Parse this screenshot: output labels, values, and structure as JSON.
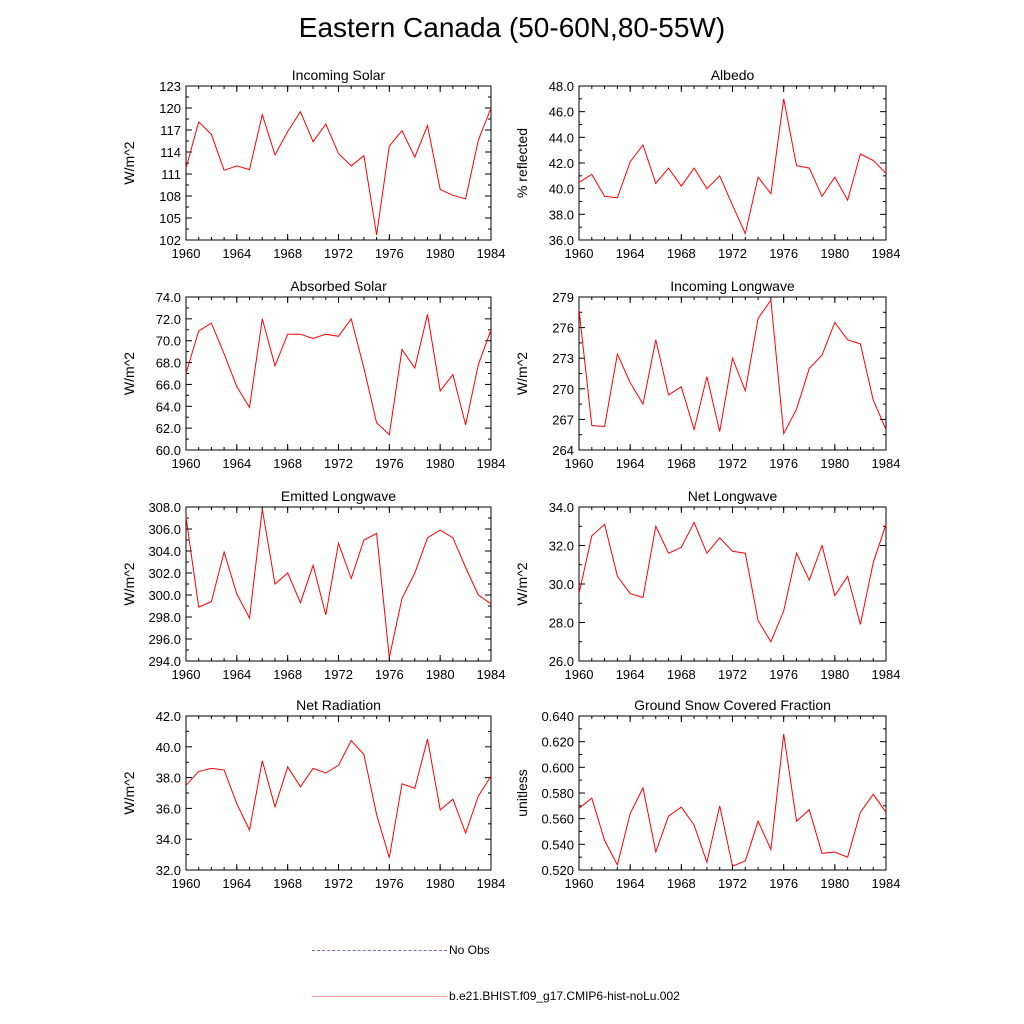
{
  "title": "Eastern Canada (50-60N,80-55W)",
  "legend": {
    "entries": [
      {
        "label": "No Obs",
        "color": "#6f6fb0",
        "dash": true
      },
      {
        "label": "b.e21.BHIST.f09_g17.CMIP6-hist-noLu.002",
        "color": "#ff0000",
        "dash": false
      }
    ]
  },
  "chart_data": [
    {
      "type": "line",
      "title": "Incoming Solar",
      "ylabel": "W/m^2",
      "xlim": [
        1960,
        1984
      ],
      "ylim": [
        102,
        123
      ],
      "xticks": [
        1960,
        1964,
        1968,
        1972,
        1976,
        1980,
        1984
      ],
      "yticks": [
        102,
        105,
        108,
        111,
        114,
        117,
        120,
        123
      ],
      "ytick_labels": [
        "102",
        "105",
        "108",
        "111",
        "114",
        "117",
        "120",
        "123"
      ],
      "x": [
        1960,
        1961,
        1962,
        1963,
        1964,
        1965,
        1966,
        1967,
        1968,
        1969,
        1970,
        1971,
        1972,
        1973,
        1974,
        1975,
        1976,
        1977,
        1978,
        1979,
        1980,
        1981,
        1982,
        1983,
        1984
      ],
      "series": [
        {
          "name": "b.e21.BHIST.f09_g17.CMIP6-hist-noLu.002",
          "color": "#ff0000",
          "values": [
            111.8,
            118.1,
            116.4,
            111.5,
            112.1,
            111.6,
            119.1,
            113.6,
            116.8,
            119.5,
            115.4,
            117.8,
            113.8,
            112.1,
            113.5,
            102.7,
            114.8,
            116.9,
            113.3,
            117.6,
            108.9,
            108.1,
            107.6,
            115.6,
            120.0
          ]
        }
      ]
    },
    {
      "type": "line",
      "title": "Albedo",
      "ylabel": "% reflected",
      "xlim": [
        1960,
        1984
      ],
      "ylim": [
        36,
        48
      ],
      "xticks": [
        1960,
        1964,
        1968,
        1972,
        1976,
        1980,
        1984
      ],
      "yticks": [
        36,
        38,
        40,
        42,
        44,
        46,
        48
      ],
      "ytick_labels": [
        "36.0",
        "38.0",
        "40.0",
        "42.0",
        "44.0",
        "46.0",
        "48.0"
      ],
      "x": [
        1960,
        1961,
        1962,
        1963,
        1964,
        1965,
        1966,
        1967,
        1968,
        1969,
        1970,
        1971,
        1972,
        1973,
        1974,
        1975,
        1976,
        1977,
        1978,
        1979,
        1980,
        1981,
        1982,
        1983,
        1984
      ],
      "series": [
        {
          "name": "b.e21.BHIST.f09_g17.CMIP6-hist-noLu.002",
          "color": "#ff0000",
          "values": [
            40.5,
            41.1,
            39.4,
            39.3,
            42.1,
            43.4,
            40.4,
            41.6,
            40.2,
            41.6,
            40.0,
            41.0,
            38.7,
            36.5,
            40.9,
            39.6,
            47.0,
            41.8,
            41.6,
            39.4,
            40.9,
            39.1,
            42.7,
            42.2,
            41.2
          ]
        }
      ]
    },
    {
      "type": "line",
      "title": "Absorbed Solar",
      "ylabel": "W/m^2",
      "xlim": [
        1960,
        1984
      ],
      "ylim": [
        60,
        74
      ],
      "xticks": [
        1960,
        1964,
        1968,
        1972,
        1976,
        1980,
        1984
      ],
      "yticks": [
        60,
        62,
        64,
        66,
        68,
        70,
        72,
        74
      ],
      "ytick_labels": [
        "60.0",
        "62.0",
        "64.0",
        "66.0",
        "68.0",
        "70.0",
        "72.0",
        "74.0"
      ],
      "x": [
        1960,
        1961,
        1962,
        1963,
        1964,
        1965,
        1966,
        1967,
        1968,
        1969,
        1970,
        1971,
        1972,
        1973,
        1974,
        1975,
        1976,
        1977,
        1978,
        1979,
        1980,
        1981,
        1982,
        1983,
        1984
      ],
      "series": [
        {
          "name": "b.e21.BHIST.f09_g17.CMIP6-hist-noLu.002",
          "color": "#ff0000",
          "values": [
            67.0,
            70.9,
            71.6,
            68.8,
            65.8,
            63.9,
            72.0,
            67.7,
            70.6,
            70.6,
            70.2,
            70.6,
            70.4,
            72.0,
            67.5,
            62.5,
            61.4,
            69.2,
            67.5,
            72.4,
            65.4,
            66.9,
            62.3,
            67.8,
            71.0
          ]
        }
      ]
    },
    {
      "type": "line",
      "title": "Incoming Longwave",
      "ylabel": "W/m^2",
      "xlim": [
        1960,
        1984
      ],
      "ylim": [
        264,
        279
      ],
      "xticks": [
        1960,
        1964,
        1968,
        1972,
        1976,
        1980,
        1984
      ],
      "yticks": [
        264,
        267,
        270,
        273,
        276,
        279
      ],
      "ytick_labels": [
        "264",
        "267",
        "270",
        "273",
        "276",
        "279"
      ],
      "x": [
        1960,
        1961,
        1962,
        1963,
        1964,
        1965,
        1966,
        1967,
        1968,
        1969,
        1970,
        1971,
        1972,
        1973,
        1974,
        1975,
        1976,
        1977,
        1978,
        1979,
        1980,
        1981,
        1982,
        1983,
        1984
      ],
      "series": [
        {
          "name": "b.e21.BHIST.f09_g17.CMIP6-hist-noLu.002",
          "color": "#ff0000",
          "values": [
            277.8,
            266.4,
            266.3,
            273.4,
            270.6,
            268.5,
            274.8,
            269.4,
            270.2,
            266.0,
            271.2,
            265.8,
            273.0,
            269.8,
            276.9,
            278.7,
            265.6,
            268.0,
            272.0,
            273.3,
            276.5,
            274.8,
            274.4,
            268.9,
            266.0
          ]
        }
      ]
    },
    {
      "type": "line",
      "title": "Emitted Longwave",
      "ylabel": "W/m^2",
      "xlim": [
        1960,
        1984
      ],
      "ylim": [
        294,
        308
      ],
      "xticks": [
        1960,
        1964,
        1968,
        1972,
        1976,
        1980,
        1984
      ],
      "yticks": [
        294,
        296,
        298,
        300,
        302,
        304,
        306,
        308
      ],
      "ytick_labels": [
        "294.0",
        "296.0",
        "298.0",
        "300.0",
        "302.0",
        "304.0",
        "306.0",
        "308.0"
      ],
      "x": [
        1960,
        1961,
        1962,
        1963,
        1964,
        1965,
        1966,
        1967,
        1968,
        1969,
        1970,
        1971,
        1972,
        1973,
        1974,
        1975,
        1976,
        1977,
        1978,
        1979,
        1980,
        1981,
        1982,
        1983,
        1984
      ],
      "series": [
        {
          "name": "b.e21.BHIST.f09_g17.CMIP6-hist-noLu.002",
          "color": "#ff0000",
          "values": [
            307.1,
            298.9,
            299.4,
            303.9,
            300.1,
            297.9,
            307.8,
            301.0,
            302.0,
            299.3,
            302.7,
            298.2,
            304.7,
            301.5,
            305.0,
            305.6,
            294.3,
            299.7,
            302.0,
            305.2,
            305.9,
            305.2,
            302.5,
            300.0,
            299.2
          ]
        }
      ]
    },
    {
      "type": "line",
      "title": "Net Longwave",
      "ylabel": "W/m^2",
      "xlim": [
        1960,
        1984
      ],
      "ylim": [
        26,
        34
      ],
      "xticks": [
        1960,
        1964,
        1968,
        1972,
        1976,
        1980,
        1984
      ],
      "yticks": [
        26,
        28,
        30,
        32,
        34
      ],
      "ytick_labels": [
        "26.0",
        "28.0",
        "30.0",
        "32.0",
        "34.0"
      ],
      "x": [
        1960,
        1961,
        1962,
        1963,
        1964,
        1965,
        1966,
        1967,
        1968,
        1969,
        1970,
        1971,
        1972,
        1973,
        1974,
        1975,
        1976,
        1977,
        1978,
        1979,
        1980,
        1981,
        1982,
        1983,
        1984
      ],
      "series": [
        {
          "name": "b.e21.BHIST.f09_g17.CMIP6-hist-noLu.002",
          "color": "#ff0000",
          "values": [
            29.5,
            32.5,
            33.1,
            30.4,
            29.5,
            29.3,
            33.0,
            31.6,
            31.9,
            33.2,
            31.6,
            32.4,
            31.7,
            31.6,
            28.1,
            27.0,
            28.6,
            31.6,
            30.2,
            32.0,
            29.4,
            30.4,
            27.9,
            31.1,
            33.1
          ]
        }
      ]
    },
    {
      "type": "line",
      "title": "Net Radiation",
      "ylabel": "W/m^2",
      "xlim": [
        1960,
        1984
      ],
      "ylim": [
        32,
        42
      ],
      "xticks": [
        1960,
        1964,
        1968,
        1972,
        1976,
        1980,
        1984
      ],
      "yticks": [
        32,
        34,
        36,
        38,
        40,
        42
      ],
      "ytick_labels": [
        "32.0",
        "34.0",
        "36.0",
        "38.0",
        "40.0",
        "42.0"
      ],
      "x": [
        1960,
        1961,
        1962,
        1963,
        1964,
        1965,
        1966,
        1967,
        1968,
        1969,
        1970,
        1971,
        1972,
        1973,
        1974,
        1975,
        1976,
        1977,
        1978,
        1979,
        1980,
        1981,
        1982,
        1983,
        1984
      ],
      "series": [
        {
          "name": "b.e21.BHIST.f09_g17.CMIP6-hist-noLu.002",
          "color": "#ff0000",
          "values": [
            37.5,
            38.4,
            38.6,
            38.5,
            36.3,
            34.6,
            39.1,
            36.1,
            38.7,
            37.4,
            38.6,
            38.3,
            38.8,
            40.4,
            39.5,
            35.6,
            32.8,
            37.6,
            37.3,
            40.5,
            35.9,
            36.6,
            34.4,
            36.8,
            38.1
          ]
        }
      ]
    },
    {
      "type": "line",
      "title": "Ground Snow Covered Fraction",
      "ylabel": "unitless",
      "xlim": [
        1960,
        1984
      ],
      "ylim": [
        0.52,
        0.64
      ],
      "xticks": [
        1960,
        1964,
        1968,
        1972,
        1976,
        1980,
        1984
      ],
      "yticks": [
        0.52,
        0.54,
        0.56,
        0.58,
        0.6,
        0.62,
        0.64
      ],
      "ytick_labels": [
        "0.520",
        "0.540",
        "0.560",
        "0.580",
        "0.600",
        "0.620",
        "0.640"
      ],
      "x": [
        1960,
        1961,
        1962,
        1963,
        1964,
        1965,
        1966,
        1967,
        1968,
        1969,
        1970,
        1971,
        1972,
        1973,
        1974,
        1975,
        1976,
        1977,
        1978,
        1979,
        1980,
        1981,
        1982,
        1983,
        1984
      ],
      "series": [
        {
          "name": "b.e21.BHIST.f09_g17.CMIP6-hist-noLu.002",
          "color": "#ff0000",
          "values": [
            0.568,
            0.576,
            0.543,
            0.524,
            0.564,
            0.584,
            0.534,
            0.562,
            0.569,
            0.555,
            0.526,
            0.57,
            0.523,
            0.527,
            0.558,
            0.536,
            0.626,
            0.558,
            0.567,
            0.533,
            0.534,
            0.53,
            0.565,
            0.579,
            0.565
          ]
        }
      ]
    }
  ]
}
